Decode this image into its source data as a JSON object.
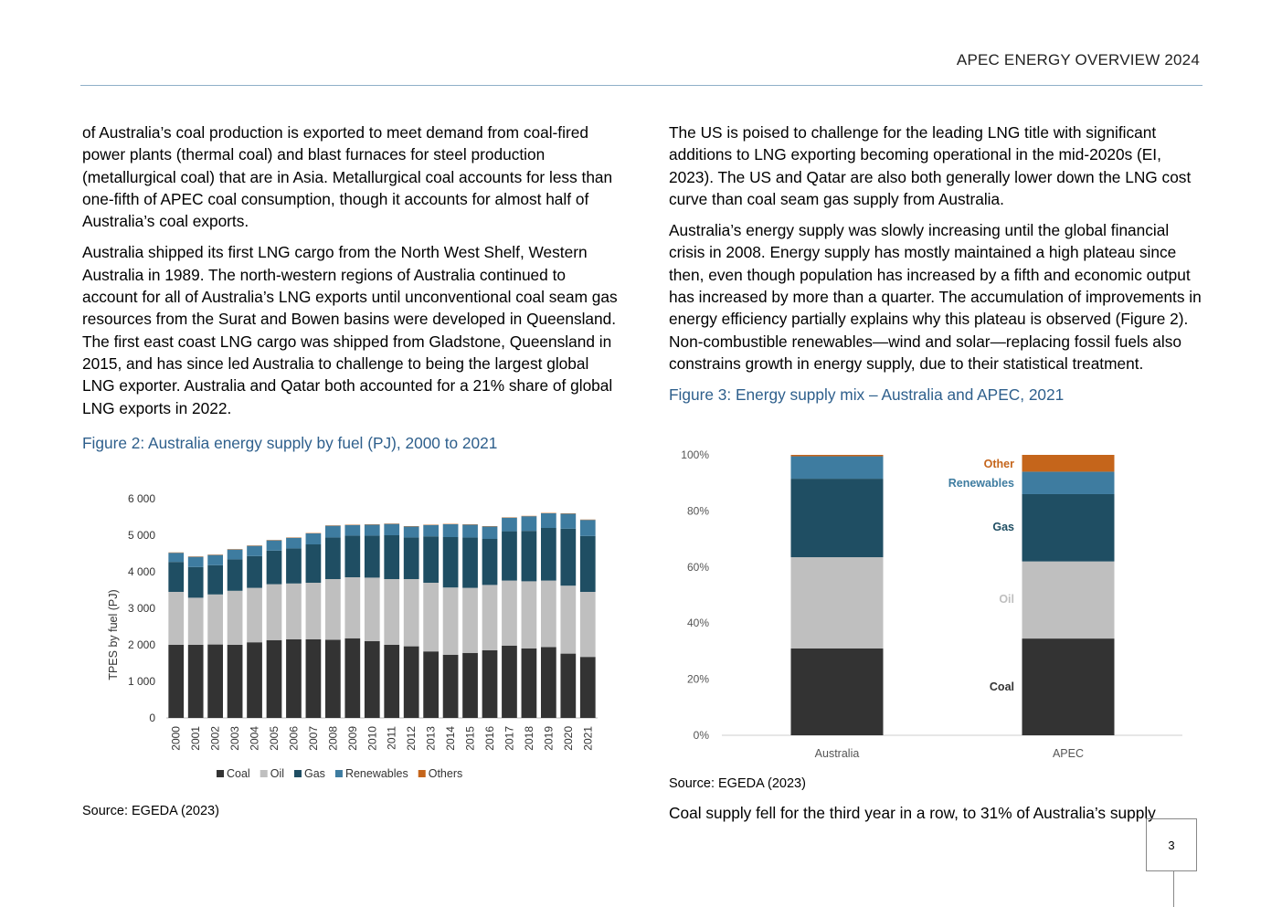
{
  "header": {
    "title": "APEC ENERGY OVERVIEW 2024"
  },
  "left_column": {
    "paragraphs": [
      "of Australia’s coal production is exported to meet demand from coal-fired power plants (thermal coal) and blast furnaces for steel production (metallurgical coal) that are in Asia. Metallurgical coal accounts for less than one-fifth of APEC coal consumption, though it accounts for almost half of Australia’s coal exports.",
      "Australia shipped its first LNG cargo from the North West Shelf, Western Australia in 1989. The north-western regions of Australia continued to account for all of Australia’s LNG exports until unconventional coal seam gas resources from the Surat and Bowen basins were developed in Queensland. The first east coast LNG cargo was shipped from Gladstone, Queensland in 2015, and has since led Australia to challenge to being the largest global LNG exporter. Australia and Qatar both accounted for a 21% share of global LNG exports in 2022."
    ],
    "figure_caption": "Figure 2: Australia energy supply by fuel (PJ), 2000 to 2021",
    "source": "Source: EGEDA (2023)"
  },
  "right_column": {
    "paragraphs": [
      "The US is poised to challenge for the leading LNG title with significant additions to LNG exporting becoming operational in the mid-2020s (EI, 2023). The US and Qatar are also both generally lower down the LNG cost curve than coal seam gas supply from Australia.",
      "Australia’s energy supply was slowly increasing until the global financial crisis in 2008. Energy supply has mostly maintained a high plateau since then, even though population has increased by a fifth and economic output has increased by more than a quarter. The accumulation of improvements in energy efficiency partially explains why this plateau is observed (Figure 2). Non-combustible renewables—wind and solar—replacing fossil fuels also constrains growth in energy supply, due to their statistical treatment."
    ],
    "figure_caption": "Figure 3: Energy supply mix – Australia and APEC, 2021",
    "source": "Source: EGEDA (2023)",
    "trailing_text": "Coal supply fell for the third year in a row, to 31% of Australia’s supply"
  },
  "page_number": "3",
  "colors": {
    "coal": "#333333",
    "oil": "#bfbfbf",
    "gas": "#1f4e63",
    "renewables": "#3e7ca0",
    "others": "#c5651b",
    "caption": "#2e5f8c"
  },
  "chart_data": [
    {
      "type": "bar",
      "stacked": true,
      "ylabel": "TPES by fuel (PJ)",
      "ylim": [
        0,
        6000
      ],
      "yticks": [
        0,
        1000,
        2000,
        3000,
        4000,
        5000,
        6000
      ],
      "ytick_labels": [
        "0",
        "1 000",
        "2 000",
        "3 000",
        "4 000",
        "5 000",
        "6 000"
      ],
      "legend": "bottom",
      "categories": [
        "2000",
        "2001",
        "2002",
        "2003",
        "2004",
        "2005",
        "2006",
        "2007",
        "2008",
        "2009",
        "2010",
        "2011",
        "2012",
        "2013",
        "2014",
        "2015",
        "2016",
        "2017",
        "2018",
        "2019",
        "2020",
        "2021"
      ],
      "series": [
        {
          "name": "Coal",
          "values": [
            2000,
            2000,
            2010,
            2000,
            2070,
            2130,
            2150,
            2150,
            2140,
            2180,
            2100,
            2000,
            1960,
            1820,
            1730,
            1780,
            1850,
            1980,
            1900,
            1940,
            1760,
            1670
          ]
        },
        {
          "name": "Oil",
          "values": [
            1450,
            1290,
            1370,
            1480,
            1490,
            1530,
            1530,
            1550,
            1660,
            1670,
            1740,
            1800,
            1840,
            1880,
            1840,
            1780,
            1790,
            1780,
            1840,
            1820,
            1860,
            1780
          ]
        },
        {
          "name": "Gas",
          "values": [
            820,
            840,
            800,
            860,
            870,
            920,
            960,
            1050,
            1140,
            1140,
            1150,
            1200,
            1140,
            1270,
            1380,
            1380,
            1260,
            1350,
            1380,
            1440,
            1560,
            1530
          ]
        },
        {
          "name": "Renewables",
          "values": [
            250,
            280,
            280,
            270,
            280,
            280,
            290,
            300,
            320,
            290,
            300,
            310,
            300,
            310,
            350,
            350,
            340,
            370,
            400,
            400,
            410,
            440
          ]
        },
        {
          "name": "Others",
          "values": [
            10,
            10,
            10,
            10,
            10,
            10,
            10,
            10,
            10,
            10,
            10,
            10,
            10,
            10,
            10,
            10,
            10,
            10,
            10,
            10,
            10,
            10
          ]
        }
      ]
    },
    {
      "type": "bar",
      "stacked": true,
      "percent": true,
      "ylim": [
        0,
        100
      ],
      "yticks": [
        0,
        20,
        40,
        60,
        80,
        100
      ],
      "ytick_labels": [
        "0%",
        "20%",
        "40%",
        "60%",
        "80%",
        "100%"
      ],
      "categories": [
        "Australia",
        "APEC"
      ],
      "series": [
        {
          "name": "Coal",
          "values": [
            31,
            34.5
          ]
        },
        {
          "name": "Oil",
          "values": [
            32.5,
            27.5
          ]
        },
        {
          "name": "Gas",
          "values": [
            28,
            24
          ]
        },
        {
          "name": "Renewables",
          "values": [
            8,
            8
          ]
        },
        {
          "name": "Other",
          "values": [
            0.5,
            6
          ]
        }
      ]
    }
  ]
}
